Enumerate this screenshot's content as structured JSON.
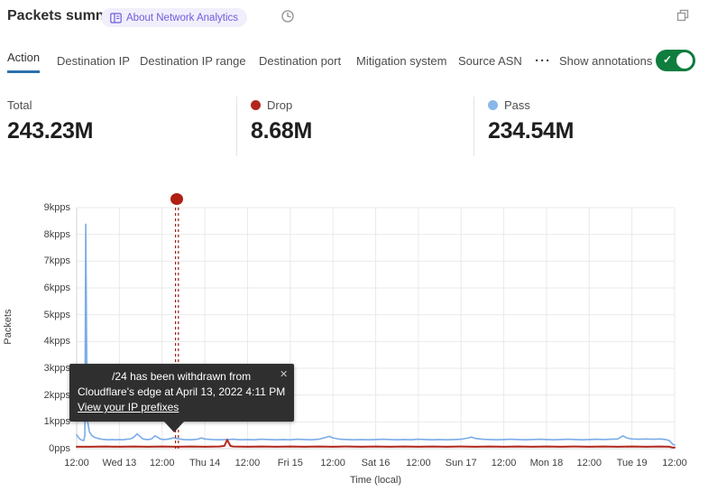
{
  "header": {
    "title": "Packets summary",
    "badge_label": "About Network Analytics",
    "icons": {
      "badge": "book-icon",
      "time": "clock-icon",
      "window": "popout-icon"
    }
  },
  "tabs": {
    "items": [
      {
        "label": "Action",
        "active": true
      },
      {
        "label": "Destination IP",
        "active": false
      },
      {
        "label": "Destination IP range",
        "active": false
      },
      {
        "label": "Destination port",
        "active": false
      },
      {
        "label": "Mitigation system",
        "active": false
      },
      {
        "label": "Source ASN",
        "active": false
      }
    ],
    "more_label": "···",
    "annotations_label": "Show annotations",
    "toggle_on": true,
    "toggle_check_glyph": "✓"
  },
  "stats": [
    {
      "label": "Total",
      "value": "243.23M",
      "dot_color": null
    },
    {
      "label": "Drop",
      "value": "8.68M",
      "dot_color": "#b2271d"
    },
    {
      "label": "Pass",
      "value": "234.54M",
      "dot_color": "#8ab7e9"
    }
  ],
  "tooltip": {
    "line1": "/24 has been withdrawn from",
    "line2": "Cloudflare's edge at April 13, 2022 4:11 PM",
    "link": "View your IP prefixes",
    "close_glyph": "✕"
  },
  "colors": {
    "accent_blue": "#2d70ad",
    "toggle_green": "#0e7d3e",
    "badge_purple": "#6e5ddc",
    "grid": "#e9eaeb",
    "axis_line": "#d6d6d6",
    "annotation_red": "#9e1d12"
  },
  "chart_data": {
    "type": "line",
    "title": "Packets summary",
    "xlabel": "Time (local)",
    "ylabel": "Packets",
    "x_unit": "hours since 2022-04-12 12:00 (local)",
    "xlim": [
      0,
      168
    ],
    "ylim": [
      0,
      9
    ],
    "grid": true,
    "y_tick_values": [
      0,
      1,
      2,
      3,
      4,
      5,
      6,
      7,
      8,
      9
    ],
    "y_tick_labels": [
      "0pps",
      "1kpps",
      "2kpps",
      "3kpps",
      "4kpps",
      "5kpps",
      "6kpps",
      "7kpps",
      "8kpps",
      "9kpps"
    ],
    "x_tick_hours": [
      0,
      12,
      24,
      36,
      48,
      60,
      72,
      84,
      96,
      108,
      120,
      132,
      144,
      156,
      168
    ],
    "x_tick_labels": [
      "12:00",
      "Wed 13",
      "12:00",
      "Thu 14",
      "12:00",
      "Fri 15",
      "12:00",
      "Sat 16",
      "12:00",
      "Sun 17",
      "12:00",
      "Mon 18",
      "12:00",
      "Tue 19",
      "12:00"
    ],
    "series": [
      {
        "name": "Pass",
        "color": "#7aabe8",
        "width": 1.6,
        "points": [
          [
            0,
            0.52
          ],
          [
            0.7,
            0.38
          ],
          [
            1.4,
            0.32
          ],
          [
            2.0,
            0.3
          ],
          [
            2.3,
            0.5
          ],
          [
            2.55,
            8.38
          ],
          [
            2.85,
            3.1
          ],
          [
            3.1,
            1.0
          ],
          [
            3.6,
            0.62
          ],
          [
            4.2,
            0.5
          ],
          [
            5,
            0.42
          ],
          [
            6,
            0.38
          ],
          [
            7,
            0.35
          ],
          [
            8,
            0.34
          ],
          [
            9,
            0.33
          ],
          [
            10,
            0.34
          ],
          [
            11,
            0.33
          ],
          [
            12,
            0.34
          ],
          [
            13,
            0.33
          ],
          [
            14,
            0.35
          ],
          [
            15,
            0.36
          ],
          [
            16,
            0.42
          ],
          [
            17,
            0.55
          ],
          [
            17.6,
            0.48
          ],
          [
            18.4,
            0.38
          ],
          [
            19,
            0.35
          ],
          [
            20,
            0.34
          ],
          [
            21,
            0.36
          ],
          [
            22,
            0.48
          ],
          [
            22.8,
            0.42
          ],
          [
            23.5,
            0.36
          ],
          [
            24.5,
            0.34
          ],
          [
            26,
            0.36
          ],
          [
            27,
            0.4
          ],
          [
            28,
            0.38
          ],
          [
            29,
            0.36
          ],
          [
            30,
            0.34
          ],
          [
            32,
            0.33
          ],
          [
            34,
            0.35
          ],
          [
            35,
            0.4
          ],
          [
            36,
            0.36
          ],
          [
            38,
            0.34
          ],
          [
            40,
            0.33
          ],
          [
            42,
            0.34
          ],
          [
            44,
            0.35
          ],
          [
            46,
            0.33
          ],
          [
            48,
            0.34
          ],
          [
            50,
            0.33
          ],
          [
            52,
            0.35
          ],
          [
            54,
            0.34
          ],
          [
            56,
            0.33
          ],
          [
            58,
            0.34
          ],
          [
            60,
            0.33
          ],
          [
            62,
            0.35
          ],
          [
            64,
            0.34
          ],
          [
            66,
            0.33
          ],
          [
            68,
            0.35
          ],
          [
            70,
            0.42
          ],
          [
            71,
            0.46
          ],
          [
            72,
            0.4
          ],
          [
            74,
            0.35
          ],
          [
            76,
            0.34
          ],
          [
            78,
            0.33
          ],
          [
            80,
            0.34
          ],
          [
            82,
            0.33
          ],
          [
            84,
            0.34
          ],
          [
            86,
            0.35
          ],
          [
            88,
            0.34
          ],
          [
            90,
            0.33
          ],
          [
            92,
            0.34
          ],
          [
            94,
            0.33
          ],
          [
            96,
            0.35
          ],
          [
            98,
            0.34
          ],
          [
            100,
            0.33
          ],
          [
            102,
            0.34
          ],
          [
            104,
            0.33
          ],
          [
            106,
            0.34
          ],
          [
            108,
            0.35
          ],
          [
            110,
            0.4
          ],
          [
            111,
            0.43
          ],
          [
            112,
            0.38
          ],
          [
            114,
            0.35
          ],
          [
            116,
            0.34
          ],
          [
            118,
            0.33
          ],
          [
            120,
            0.34
          ],
          [
            122,
            0.35
          ],
          [
            124,
            0.34
          ],
          [
            126,
            0.33
          ],
          [
            128,
            0.34
          ],
          [
            130,
            0.35
          ],
          [
            132,
            0.34
          ],
          [
            134,
            0.33
          ],
          [
            136,
            0.34
          ],
          [
            138,
            0.35
          ],
          [
            140,
            0.34
          ],
          [
            142,
            0.33
          ],
          [
            144,
            0.34
          ],
          [
            146,
            0.35
          ],
          [
            148,
            0.34
          ],
          [
            150,
            0.35
          ],
          [
            152,
            0.36
          ],
          [
            153.5,
            0.48
          ],
          [
            154.5,
            0.4
          ],
          [
            156,
            0.36
          ],
          [
            158,
            0.35
          ],
          [
            160,
            0.36
          ],
          [
            162,
            0.35
          ],
          [
            164,
            0.36
          ],
          [
            165.5,
            0.34
          ],
          [
            166.5,
            0.3
          ],
          [
            167.5,
            0.16
          ],
          [
            168,
            0.14
          ]
        ]
      },
      {
        "name": "Drop",
        "color": "#b3281e",
        "width": 2,
        "points": [
          [
            0,
            0.07
          ],
          [
            4,
            0.07
          ],
          [
            8,
            0.08
          ],
          [
            12,
            0.07
          ],
          [
            16,
            0.08
          ],
          [
            20,
            0.07
          ],
          [
            24,
            0.08
          ],
          [
            28,
            0.07
          ],
          [
            32,
            0.08
          ],
          [
            36,
            0.07
          ],
          [
            40,
            0.08
          ],
          [
            41.5,
            0.1
          ],
          [
            42.3,
            0.33
          ],
          [
            43.2,
            0.1
          ],
          [
            44,
            0.08
          ],
          [
            48,
            0.07
          ],
          [
            52,
            0.08
          ],
          [
            56,
            0.07
          ],
          [
            60,
            0.08
          ],
          [
            64,
            0.07
          ],
          [
            68,
            0.08
          ],
          [
            72,
            0.07
          ],
          [
            76,
            0.08
          ],
          [
            80,
            0.07
          ],
          [
            84,
            0.08
          ],
          [
            88,
            0.07
          ],
          [
            92,
            0.08
          ],
          [
            96,
            0.07
          ],
          [
            100,
            0.08
          ],
          [
            104,
            0.07
          ],
          [
            108,
            0.08
          ],
          [
            112,
            0.07
          ],
          [
            116,
            0.08
          ],
          [
            120,
            0.07
          ],
          [
            124,
            0.08
          ],
          [
            128,
            0.07
          ],
          [
            132,
            0.08
          ],
          [
            136,
            0.07
          ],
          [
            140,
            0.08
          ],
          [
            144,
            0.07
          ],
          [
            148,
            0.08
          ],
          [
            152,
            0.07
          ],
          [
            156,
            0.08
          ],
          [
            160,
            0.07
          ],
          [
            164,
            0.08
          ],
          [
            166.5,
            0.07
          ],
          [
            167.5,
            0.04
          ],
          [
            168,
            0.04
          ]
        ]
      }
    ],
    "annotation": {
      "hour": 28.18,
      "color": "#9e1d12",
      "marker": "circle",
      "text": "/24 has been withdrawn from Cloudflare's edge at April 13, 2022 4:11 PM"
    },
    "legend": [
      {
        "name": "Total",
        "value": "243.23M"
      },
      {
        "name": "Drop",
        "value": "8.68M",
        "color": "#b2271d"
      },
      {
        "name": "Pass",
        "value": "234.54M",
        "color": "#8ab7e9"
      }
    ],
    "legend_position": "top"
  }
}
